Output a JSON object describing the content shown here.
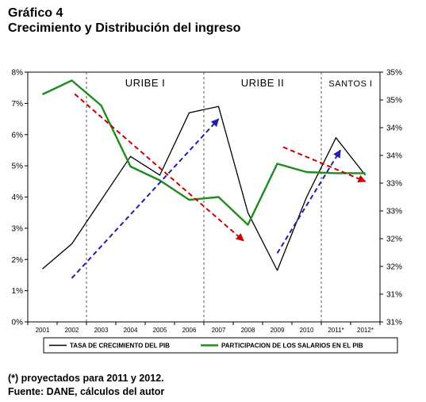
{
  "header": {
    "title": "Gráfico 4",
    "subtitle": "Crecimiento y Distribución del ingreso"
  },
  "footer": {
    "note": "(*) proyectados para 2011 y 2012.",
    "source": "Fuente: DANE, cálculos del autor"
  },
  "chart_data": {
    "type": "line",
    "categories": [
      "2001",
      "2002",
      "2003",
      "2004",
      "2005",
      "2006",
      "2007",
      "2008",
      "2009",
      "2010",
      "2011*",
      "2012*"
    ],
    "left_axis": {
      "ticks": [
        "0%",
        "1%",
        "2%",
        "3%",
        "4%",
        "5%",
        "6%",
        "7%",
        "8%"
      ],
      "range": [
        0,
        8
      ]
    },
    "right_axis": {
      "ticks": [
        "31%",
        "31%",
        "32%",
        "32%",
        "33%",
        "33%",
        "34%",
        "34%",
        "35%",
        "35%"
      ],
      "range": [
        31.0,
        35.5
      ]
    },
    "series": [
      {
        "name": "TASA DE CRECIMIENTO DEL PIB",
        "axis": "left",
        "color": "#000000",
        "values": [
          1.7,
          2.5,
          3.9,
          5.3,
          4.7,
          6.7,
          6.9,
          3.5,
          1.65,
          4.0,
          5.9,
          4.7
        ]
      },
      {
        "name": "PARTICIPACION DE LOS SALARIOS EN EL PIB",
        "axis": "right",
        "color": "#1e8c1e",
        "values": [
          35.1,
          35.35,
          34.9,
          33.8,
          33.55,
          33.2,
          33.25,
          32.75,
          33.85,
          33.7,
          33.68,
          33.68
        ]
      }
    ],
    "periods": [
      {
        "label": "URIBE I",
        "from": "2002",
        "to": "2006"
      },
      {
        "label": "URIBE II",
        "from": "2006",
        "to": "2010"
      },
      {
        "label": "SANTOS I",
        "from": "2010",
        "to": "2012*"
      }
    ],
    "trend_arrows": [
      {
        "color": "#cc0000",
        "from": [
          2.1,
          7.3
        ],
        "to": [
          7.85,
          2.6
        ]
      },
      {
        "color": "#cc0000",
        "from": [
          9.2,
          5.6
        ],
        "to": [
          12.0,
          4.5
        ]
      },
      {
        "color": "#1f1fb0",
        "from": [
          2.0,
          1.4
        ],
        "to": [
          7.0,
          6.5
        ]
      },
      {
        "color": "#1f1fb0",
        "from": [
          9.0,
          2.2
        ],
        "to": [
          11.15,
          5.5
        ]
      }
    ],
    "grid": false,
    "legend_position": "bottom"
  }
}
